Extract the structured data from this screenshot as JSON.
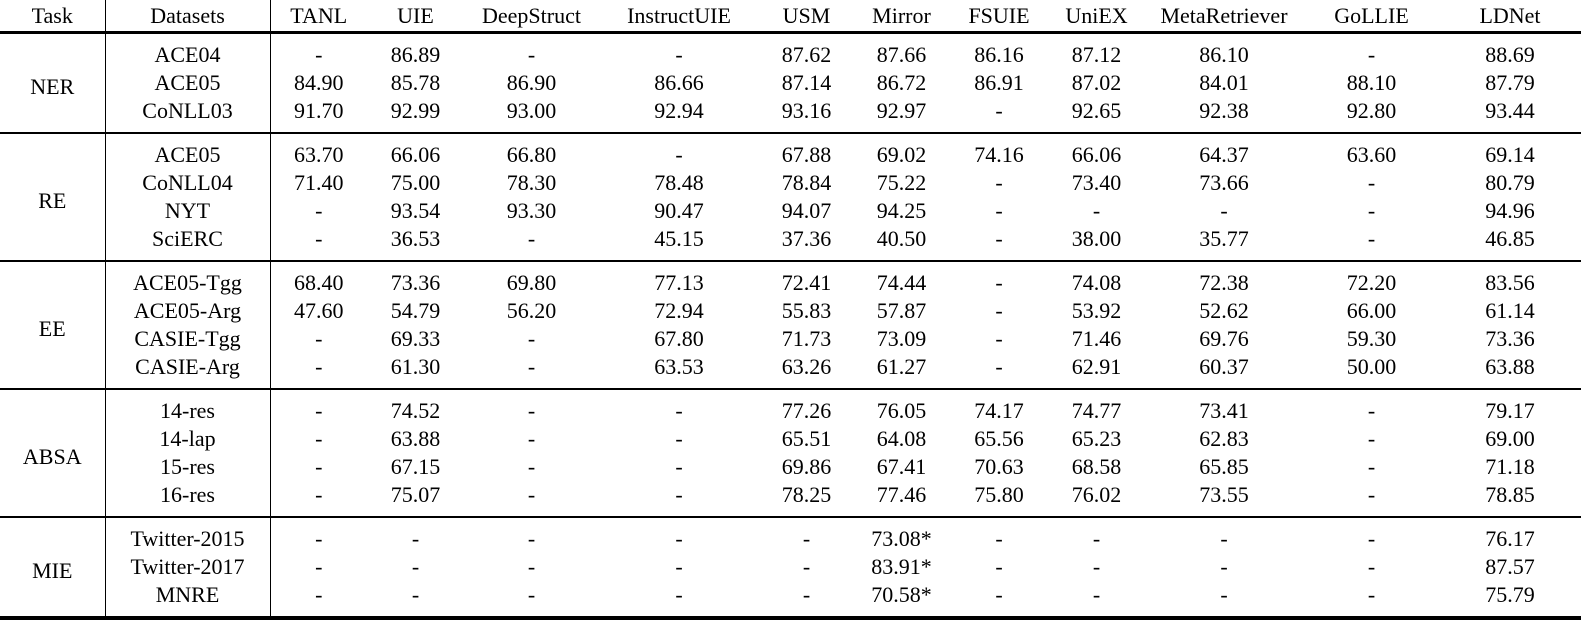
{
  "table": {
    "header": {
      "task_label": "Task",
      "datasets_label": "Datasets",
      "models": [
        {
          "label": "TANL",
          "bold": false
        },
        {
          "label": "UIE",
          "bold": false
        },
        {
          "label": "DeepStruct",
          "bold": false
        },
        {
          "label": "InstructUIE",
          "bold": false
        },
        {
          "label": "USM",
          "bold": false
        },
        {
          "label": "Mirror",
          "bold": false
        },
        {
          "label": "FSUIE",
          "bold": false
        },
        {
          "label": "UniEX",
          "bold": false
        },
        {
          "label": "MetaRetriever",
          "bold": false
        },
        {
          "label": "GoLLIE",
          "bold": false
        },
        {
          "label": "LDNet",
          "bold": true
        }
      ]
    },
    "sections": [
      {
        "task": "NER",
        "rows": [
          {
            "dataset": "ACE04",
            "values": [
              "-",
              "86.89",
              "-",
              "-",
              "87.62",
              "87.66",
              "86.16",
              "87.12",
              "86.10",
              "-",
              "88.69"
            ],
            "bold_col": 10
          },
          {
            "dataset": "ACE05",
            "values": [
              "84.90",
              "85.78",
              "86.90",
              "86.66",
              "87.14",
              "86.72",
              "86.91",
              "87.02",
              "84.01",
              "88.10",
              "87.79"
            ],
            "bold_col": 9
          },
          {
            "dataset": "CoNLL03",
            "values": [
              "91.70",
              "92.99",
              "93.00",
              "92.94",
              "93.16",
              "92.97",
              "-",
              "92.65",
              "92.38",
              "92.80",
              "93.44"
            ],
            "bold_col": 10
          }
        ]
      },
      {
        "task": "RE",
        "rows": [
          {
            "dataset": "ACE05",
            "values": [
              "63.70",
              "66.06",
              "66.80",
              "-",
              "67.88",
              "69.02",
              "74.16",
              "66.06",
              "64.37",
              "63.60",
              "69.14"
            ],
            "bold_col": 6
          },
          {
            "dataset": "CoNLL04",
            "values": [
              "71.40",
              "75.00",
              "78.30",
              "78.48",
              "78.84",
              "75.22",
              "-",
              "73.40",
              "73.66",
              "-",
              "80.79"
            ],
            "bold_col": 10
          },
          {
            "dataset": "NYT",
            "values": [
              "-",
              "93.54",
              "93.30",
              "90.47",
              "94.07",
              "94.25",
              "-",
              "-",
              "-",
              "-",
              "94.96"
            ],
            "bold_col": 10
          },
          {
            "dataset": "SciERC",
            "values": [
              "-",
              "36.53",
              "-",
              "45.15",
              "37.36",
              "40.50",
              "-",
              "38.00",
              "35.77",
              "-",
              "46.85"
            ],
            "bold_col": 10
          }
        ]
      },
      {
        "task": "EE",
        "rows": [
          {
            "dataset": "ACE05-Tgg",
            "values": [
              "68.40",
              "73.36",
              "69.80",
              "77.13",
              "72.41",
              "74.44",
              "-",
              "74.08",
              "72.38",
              "72.20",
              "83.56"
            ],
            "bold_col": 10
          },
          {
            "dataset": "ACE05-Arg",
            "values": [
              "47.60",
              "54.79",
              "56.20",
              "72.94",
              "55.83",
              "57.87",
              "-",
              "53.92",
              "52.62",
              "66.00",
              "61.14"
            ],
            "bold_col": 3
          },
          {
            "dataset": "CASIE-Tgg",
            "values": [
              "-",
              "69.33",
              "-",
              "67.80",
              "71.73",
              "73.09",
              "-",
              "71.46",
              "69.76",
              "59.30",
              "73.36"
            ],
            "bold_col": 10
          },
          {
            "dataset": "CASIE-Arg",
            "values": [
              "-",
              "61.30",
              "-",
              "63.53",
              "63.26",
              "61.27",
              "-",
              "62.91",
              "60.37",
              "50.00",
              "63.88"
            ],
            "bold_col": 10
          }
        ]
      },
      {
        "task": "ABSA",
        "rows": [
          {
            "dataset": "14-res",
            "values": [
              "-",
              "74.52",
              "-",
              "-",
              "77.26",
              "76.05",
              "74.17",
              "74.77",
              "73.41",
              "-",
              "79.17"
            ],
            "bold_col": 10
          },
          {
            "dataset": "14-lap",
            "values": [
              "-",
              "63.88",
              "-",
              "-",
              "65.51",
              "64.08",
              "65.56",
              "65.23",
              "62.83",
              "-",
              "69.00"
            ],
            "bold_col": 10
          },
          {
            "dataset": "15-res",
            "values": [
              "-",
              "67.15",
              "-",
              "-",
              "69.86",
              "67.41",
              "70.63",
              "68.58",
              "65.85",
              "-",
              "71.18"
            ],
            "bold_col": 10
          },
          {
            "dataset": "16-res",
            "values": [
              "-",
              "75.07",
              "-",
              "-",
              "78.25",
              "77.46",
              "75.80",
              "76.02",
              "73.55",
              "-",
              "78.85"
            ],
            "bold_col": 10
          }
        ]
      },
      {
        "task": "MIE",
        "rows": [
          {
            "dataset": "Twitter-2015",
            "values": [
              "-",
              "-",
              "-",
              "-",
              "-",
              "73.08*",
              "-",
              "-",
              "-",
              "-",
              "76.17"
            ],
            "bold_col": 10
          },
          {
            "dataset": "Twitter-2017",
            "values": [
              "-",
              "-",
              "-",
              "-",
              "-",
              "83.91*",
              "-",
              "-",
              "-",
              "-",
              "87.57"
            ],
            "bold_col": 10
          },
          {
            "dataset": "MNRE",
            "values": [
              "-",
              "-",
              "-",
              "-",
              "-",
              "70.58*",
              "-",
              "-",
              "-",
              "-",
              "75.79"
            ],
            "bold_col": 10
          }
        ]
      }
    ]
  }
}
